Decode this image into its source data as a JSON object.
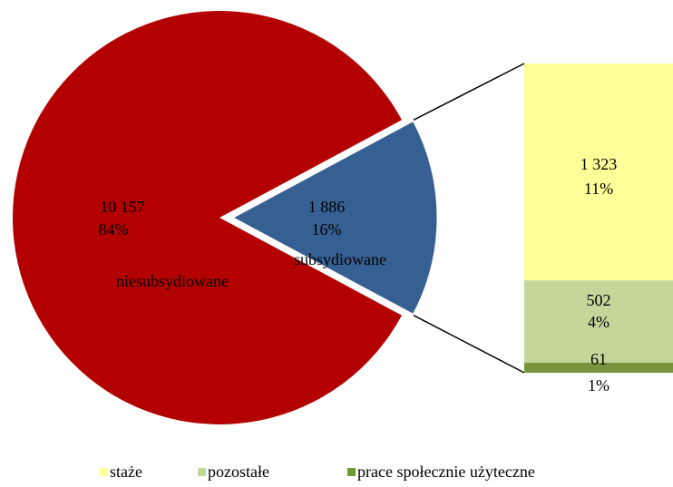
{
  "chart_data": {
    "type": "pie-of-bar",
    "pie": {
      "categories": [
        "niesubsydiowane",
        "subsydiowane"
      ],
      "colors": [
        "#b30000",
        "#376092"
      ],
      "values": [
        10157,
        1886
      ],
      "value_labels": [
        "10 157",
        "1 886"
      ],
      "percents": [
        84,
        16
      ],
      "percent_labels": [
        "84%",
        "16%"
      ]
    },
    "bar": {
      "categories": [
        "staże",
        "pozostałe",
        "prace społecznie użyteczne"
      ],
      "colors": [
        "#ffff99",
        "#c4d79b",
        "#77933c"
      ],
      "values": [
        1323,
        502,
        61
      ],
      "value_labels": [
        "1 323",
        "502",
        "61"
      ],
      "percents": [
        11,
        4,
        1
      ],
      "percent_labels": [
        "11%",
        "4%",
        "1%"
      ]
    }
  }
}
